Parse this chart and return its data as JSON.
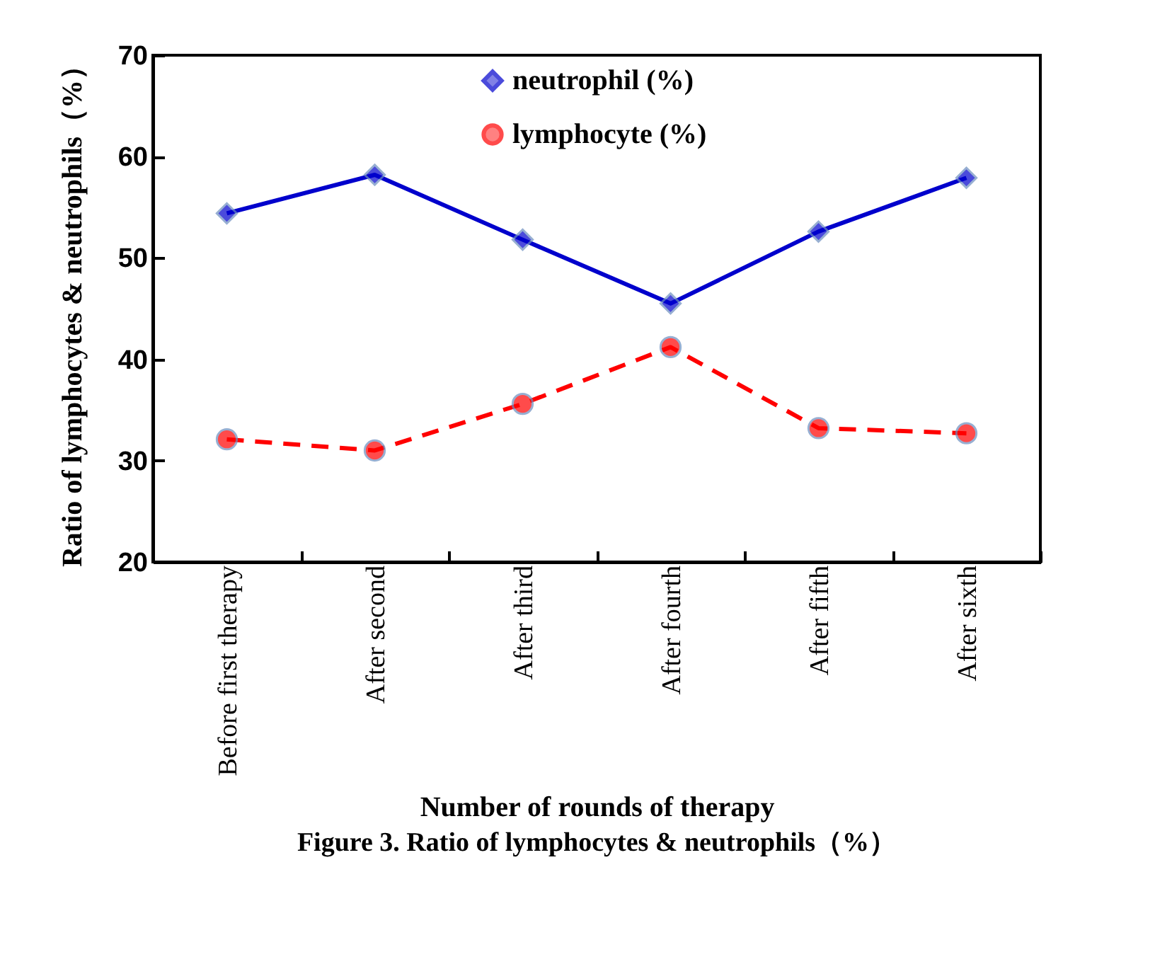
{
  "chart_data": {
    "type": "line",
    "xlabel": "Number of rounds of therapy",
    "ylabel": "Ratio of lymphocytes & neutrophils（%）",
    "annotations": [
      "Figure 3. Ratio of lymphocytes & neutrophils（%）"
    ],
    "categories": [
      "Before first therapy",
      "After second",
      "After third",
      "After fourth",
      "After fifth",
      "After sixth"
    ],
    "series": [
      {
        "name": "neutrophil (%)",
        "color": "#0000cc",
        "marker": "diamond",
        "line_style": "solid",
        "values": [
          54.4,
          58.2,
          51.8,
          45.5,
          52.6,
          57.9
        ]
      },
      {
        "name": "lymphocyte (%)",
        "color": "#ff0000",
        "marker": "circle",
        "line_style": "dashed",
        "values": [
          32.1,
          31.0,
          35.6,
          41.2,
          33.2,
          32.7
        ]
      }
    ],
    "ylim": [
      20,
      70
    ],
    "yticks": [
      20,
      30,
      40,
      50,
      60,
      70
    ],
    "grid": false,
    "legend": "top right"
  }
}
